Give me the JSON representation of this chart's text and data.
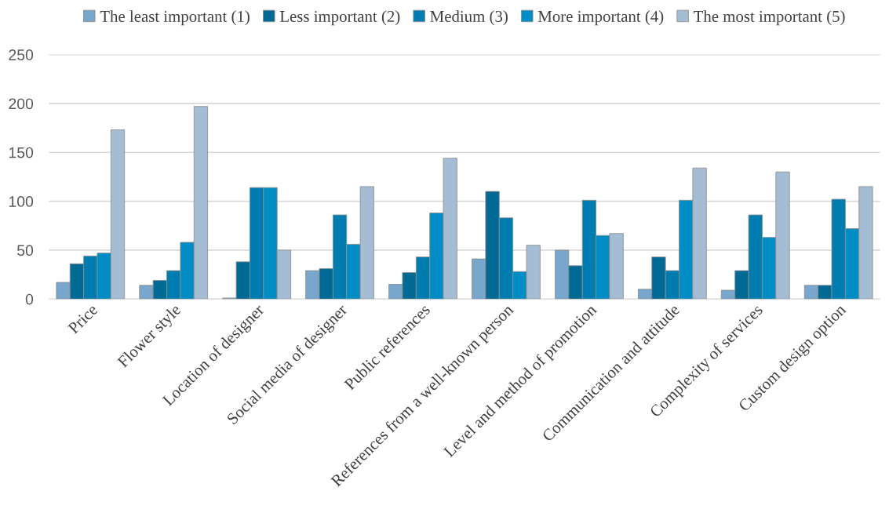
{
  "chart_data": {
    "type": "bar",
    "categories": [
      "Price",
      "Flower style",
      "Location of designer",
      "Social media of designer",
      "Public references",
      "References from a well-known person",
      "Level and method of promotion",
      "Communication and attitude",
      "Complexity of services",
      "Custom design option"
    ],
    "series": [
      {
        "name": "The least important (1)",
        "color": "#79a6cc",
        "values": [
          17,
          14,
          1,
          29,
          15,
          41,
          50,
          10,
          9,
          14
        ]
      },
      {
        "name": "Less important (2)",
        "color": "#006994",
        "values": [
          36,
          19,
          38,
          31,
          27,
          110,
          34,
          43,
          29,
          14
        ]
      },
      {
        "name": "Medium (3)",
        "color": "#007db0",
        "values": [
          44,
          29,
          114,
          86,
          43,
          83,
          101,
          29,
          86,
          102
        ]
      },
      {
        "name": "More important (4)",
        "color": "#008cc5",
        "values": [
          47,
          58,
          114,
          56,
          88,
          28,
          65,
          101,
          63,
          72
        ]
      },
      {
        "name": "The most important (5)",
        "color": "#a4bdd4",
        "values": [
          173,
          197,
          50,
          115,
          144,
          55,
          67,
          134,
          130,
          115
        ]
      }
    ],
    "ylim": [
      0,
      250
    ],
    "yticks": [
      0,
      50,
      100,
      150,
      200,
      250
    ],
    "grid": "y",
    "legend": "top"
  }
}
